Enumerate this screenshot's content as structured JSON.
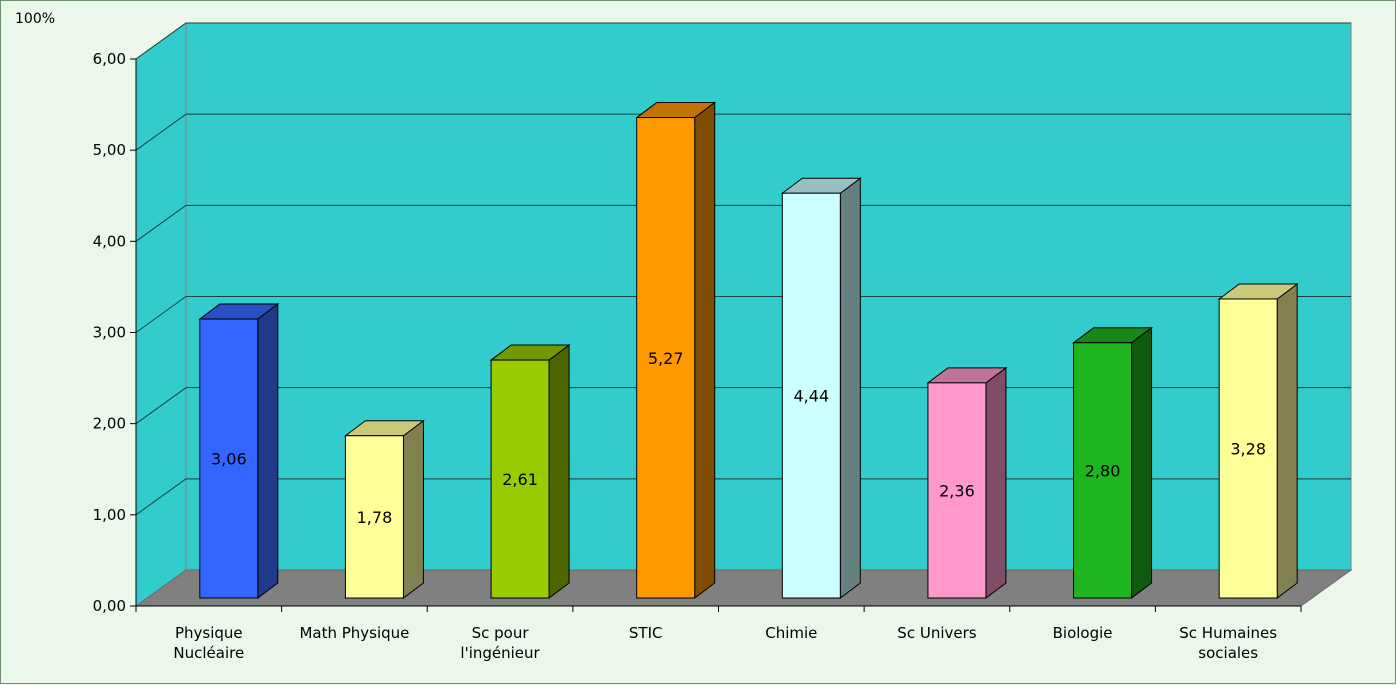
{
  "chart_data": {
    "type": "bar",
    "unit_label": "100%",
    "categories": [
      "Physique Nucléaire",
      "Math Physique",
      "Sc pour l'ingénieur",
      "STIC",
      "Chimie",
      "Sc Univers",
      "Biologie",
      "Sc Humaines sociales"
    ],
    "category_lines": [
      [
        "Physique",
        "Nucléaire"
      ],
      [
        "Math Physique"
      ],
      [
        "Sc pour",
        "l'ingénieur"
      ],
      [
        "STIC"
      ],
      [
        "Chimie"
      ],
      [
        "Sc Univers"
      ],
      [
        "Biologie"
      ],
      [
        "Sc Humaines",
        "sociales"
      ]
    ],
    "values": [
      3.06,
      1.78,
      2.61,
      5.27,
      4.44,
      2.36,
      2.8,
      3.28
    ],
    "value_labels": [
      "3,06",
      "1,78",
      "2,61",
      "5,27",
      "4,44",
      "2,36",
      "2,80",
      "3,28"
    ],
    "y_ticks": [
      "0,00",
      "1,00",
      "2,00",
      "3,00",
      "4,00",
      "5,00",
      "6,00"
    ],
    "ylim": [
      0,
      6
    ],
    "grid": true,
    "legend": "none",
    "colors": {
      "back_wall": "#33cccc",
      "floor": "#808080",
      "bars": [
        {
          "front": "#3366ff",
          "side": "#1f3a8a",
          "top": "#2a4fc4"
        },
        {
          "front": "#ffff99",
          "side": "#808050",
          "top": "#c9c97a"
        },
        {
          "front": "#99cc00",
          "side": "#4d6600",
          "top": "#739900"
        },
        {
          "front": "#ff9900",
          "side": "#804d00",
          "top": "#c07300"
        },
        {
          "front": "#ccffff",
          "side": "#668080",
          "top": "#99c0c0"
        },
        {
          "front": "#ff99cc",
          "side": "#804d66",
          "top": "#c07399"
        },
        {
          "front": "#1fb51f",
          "side": "#0f5a0f",
          "top": "#178717"
        },
        {
          "front": "#ffff99",
          "side": "#808050",
          "top": "#c9c97a"
        }
      ]
    }
  }
}
